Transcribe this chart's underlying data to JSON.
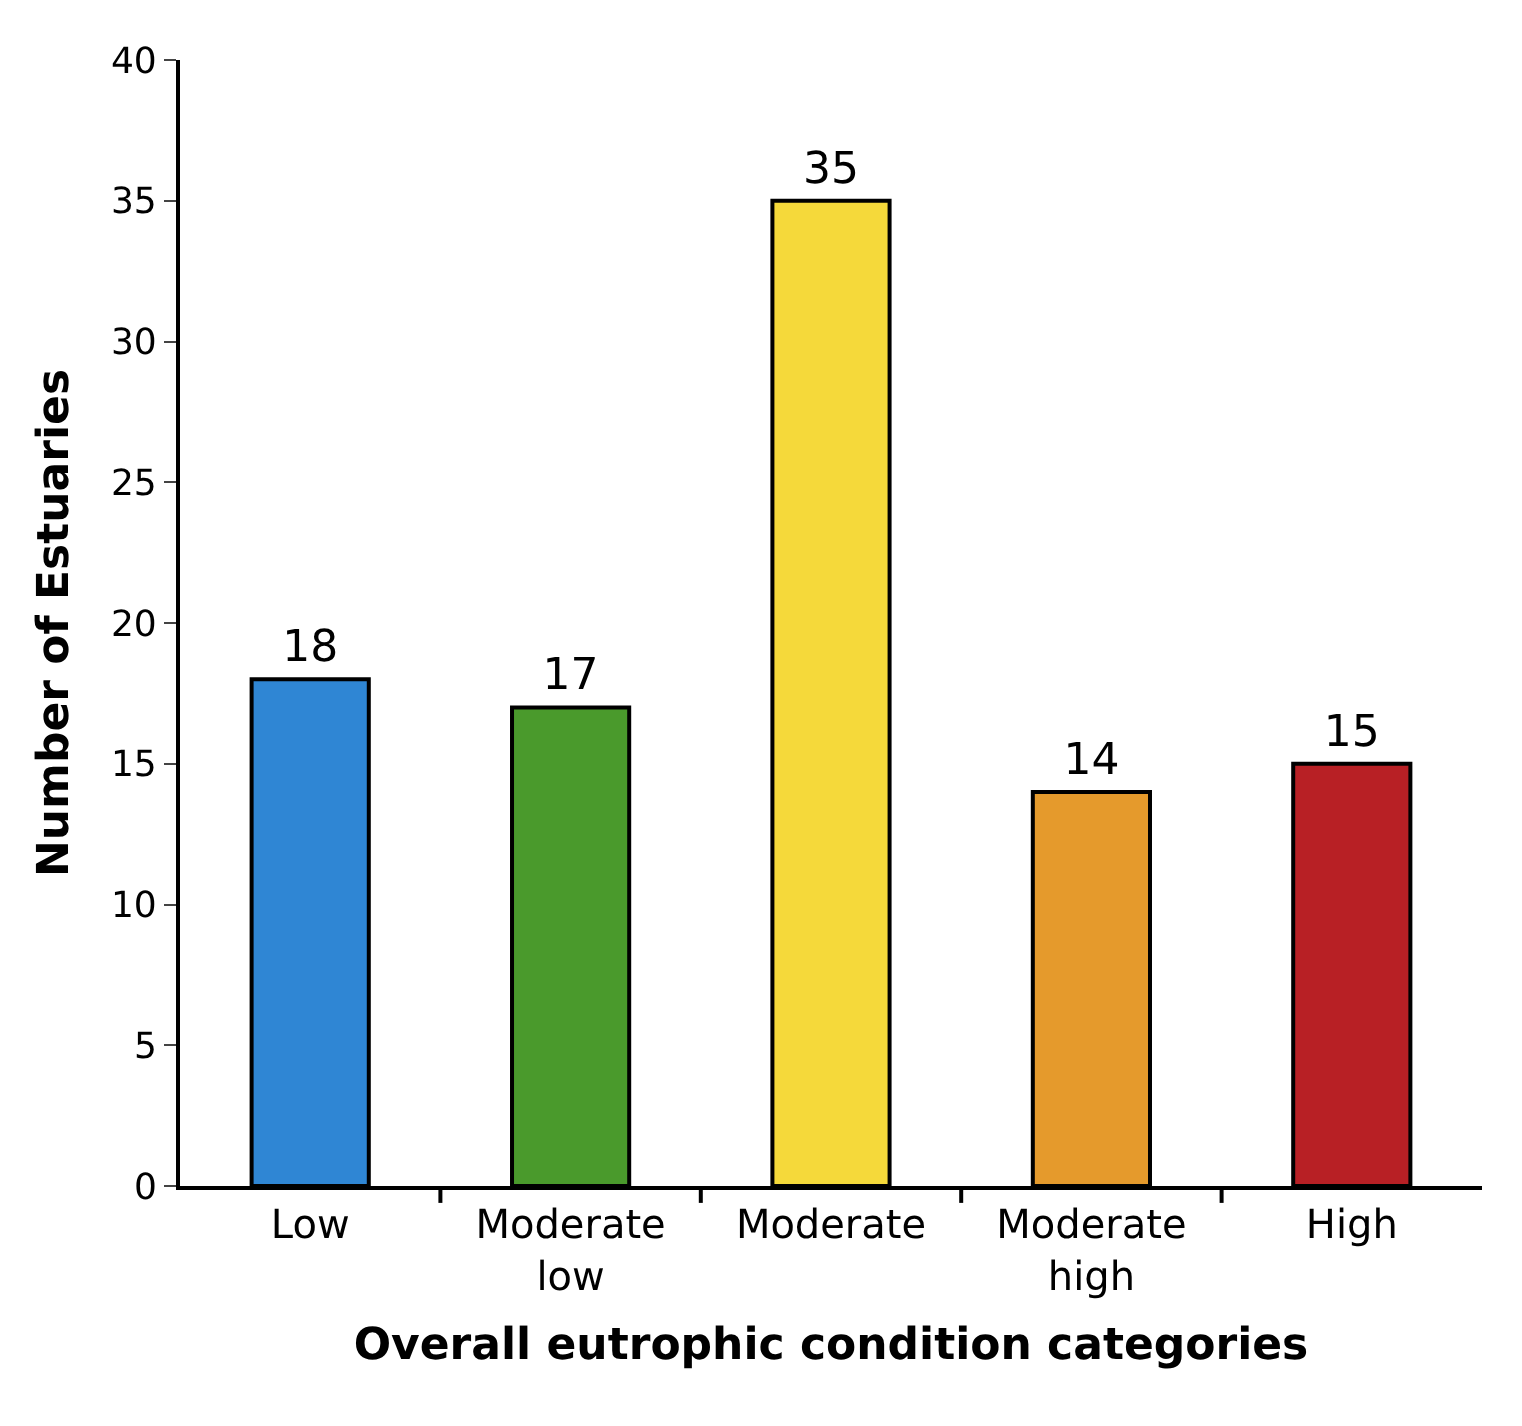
{
  "chart_data": {
    "type": "bar",
    "xlabel": "Overall eutrophic condition categories",
    "ylabel": "Number of Estuaries",
    "categories": [
      "Low",
      "Moderate\nlow",
      "Moderate",
      "Moderate\nhigh",
      "High"
    ],
    "values": [
      18,
      17,
      35,
      14,
      15
    ],
    "colors": [
      "#2f86d4",
      "#4a9a2c",
      "#f5d93a",
      "#e59a2c",
      "#b82025"
    ],
    "ylim": [
      0,
      40
    ],
    "yticks": [
      0,
      5,
      10,
      15,
      20,
      25,
      30,
      35,
      40
    ],
    "data_labels": true
  }
}
